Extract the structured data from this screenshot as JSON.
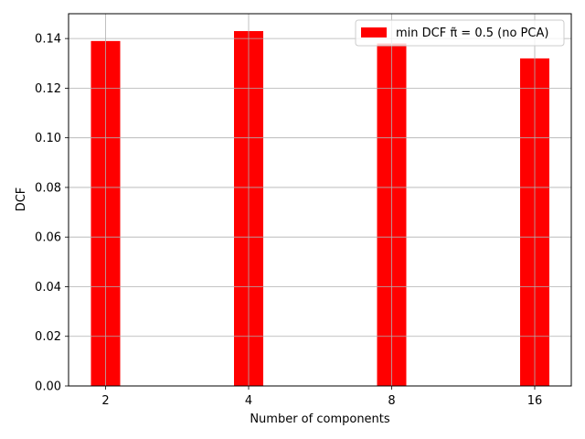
{
  "chart_data": {
    "type": "bar",
    "categories": [
      "2",
      "4",
      "8",
      "16"
    ],
    "series": [
      {
        "name": "min DCF π̃ = 0.5 (no PCA)",
        "values": [
          0.139,
          0.143,
          0.138,
          0.132
        ],
        "color": "#ff0000"
      }
    ],
    "xlabel": "Number of components",
    "ylabel": "DCF",
    "ylim": [
      0,
      0.15
    ],
    "yticks": [
      "0.00",
      "0.02",
      "0.04",
      "0.06",
      "0.08",
      "0.10",
      "0.12",
      "0.14"
    ],
    "grid": true,
    "legend_position": "top-right"
  }
}
